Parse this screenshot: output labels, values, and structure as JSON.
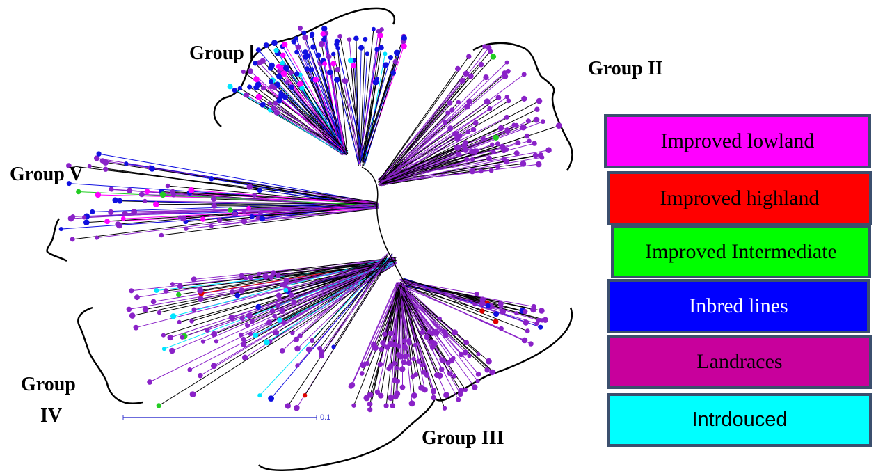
{
  "groups": [
    {
      "id": "g1",
      "label": "Group Ⅰ"
    },
    {
      "id": "g2",
      "label": "Group II"
    },
    {
      "id": "g3",
      "label": "Group III"
    },
    {
      "id": "g4a",
      "label": "Group"
    },
    {
      "id": "g4b",
      "label": "IV"
    },
    {
      "id": "g5",
      "label": "Group V"
    }
  ],
  "legend": [
    {
      "label": "Improved lowland",
      "color": "#ff00ff",
      "text_color": "#000000",
      "font": "serif"
    },
    {
      "label": "Improved highland",
      "color": "#ff0000",
      "text_color": "#000000",
      "font": "serif"
    },
    {
      "label": "Improved Intermediate",
      "color": "#00ff00",
      "text_color": "#000000",
      "font": "serif"
    },
    {
      "label": "Inbred lines",
      "color": "#0000ff",
      "text_color": "#ffffff",
      "font": "serif"
    },
    {
      "label": "Landraces",
      "color": "#c8009c",
      "text_color": "#000000",
      "font": "serif"
    },
    {
      "label": "Intrdouced",
      "color": "#00ffff",
      "text_color": "#000000",
      "font": "sans"
    }
  ],
  "scale_bar": {
    "label": "0.1"
  },
  "colors": {
    "landrace_purple": "#8a22c8",
    "inbred_blue": "#1010e0",
    "lowland_magenta": "#ff00ff",
    "intro_cyan": "#00e5ff",
    "intermediate_green": "#22cc22",
    "highland_red": "#e00000"
  }
}
